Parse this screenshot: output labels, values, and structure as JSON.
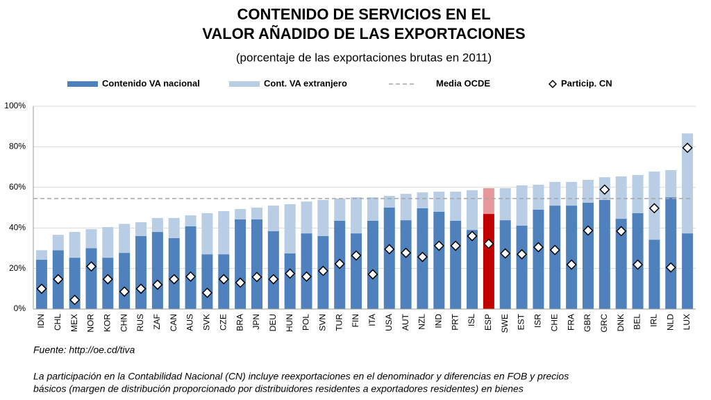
{
  "chart_data": {
    "type": "stacked_bar",
    "title_lines": [
      "CONTENIDO DE SERVICIOS EN EL",
      "VALOR AÑADIDO DE LAS EXPORTACIONES"
    ],
    "subtitle": "(porcentaje de las exportaciones brutas en 2011)",
    "categories": [
      "IDN",
      "CHL",
      "MEX",
      "NOR",
      "KOR",
      "CHN",
      "RUS",
      "ZAF",
      "CAN",
      "AUS",
      "SVK",
      "CZE",
      "BRA",
      "JPN",
      "DEU",
      "HUN",
      "POL",
      "SVN",
      "TUR",
      "FIN",
      "ITA",
      "USA",
      "AUT",
      "NZL",
      "IND",
      "PRT",
      "ISL",
      "ESP",
      "SWE",
      "EST",
      "ISR",
      "CHE",
      "FRA",
      "GBR",
      "GRC",
      "DNK",
      "BEL",
      "IRL",
      "NLD",
      "LUX"
    ],
    "series": [
      {
        "name": "Contenido VA nacional",
        "color": "#4f81bd",
        "values": [
          24.3,
          29,
          25.3,
          30,
          25.3,
          27.7,
          36,
          38,
          35,
          40.8,
          27,
          27,
          44.2,
          44.2,
          38.4,
          27.4,
          37.3,
          36,
          43.5,
          37.3,
          43.5,
          50,
          43.8,
          49.7,
          48,
          43.5,
          39,
          46.9,
          43.8,
          41.1,
          49,
          51,
          51,
          52.4,
          53.8,
          44.5,
          47.3,
          34.2,
          55.1,
          37.3
        ]
      },
      {
        "name": "Cont. VA extranjero",
        "color": "#b9cde5",
        "values": [
          4.7,
          7.6,
          12.7,
          9.4,
          15.1,
          14.3,
          6.8,
          6.9,
          9.9,
          5.4,
          20.3,
          21.3,
          5.1,
          5.8,
          12.6,
          24.3,
          15.7,
          17.8,
          11,
          17.8,
          11.6,
          5.8,
          13,
          7.8,
          9.9,
          14.4,
          19.6,
          12.7,
          15.8,
          19.9,
          12.3,
          11.7,
          11.7,
          11.3,
          11.2,
          20.9,
          18.8,
          33.6,
          13.4,
          49.3
        ]
      },
      {
        "name": "Particip. CN",
        "type": "marker",
        "color": "#ffffff",
        "values": [
          10,
          14.7,
          4.5,
          21,
          14.7,
          8.6,
          10,
          12,
          14.7,
          16,
          8,
          14.7,
          13,
          15.8,
          14.7,
          17.5,
          16,
          18.8,
          22.3,
          26.4,
          17.1,
          29.5,
          27.7,
          25.7,
          31.2,
          31.2,
          36,
          32.2,
          27.4,
          27,
          30.5,
          29.1,
          21.9,
          38.7,
          58.9,
          38.4,
          21.9,
          49.7,
          20.5,
          79.5
        ]
      }
    ],
    "reference_line": {
      "name": "Media OCDE",
      "value": 54.5,
      "color": "#a6a6a6"
    },
    "highlight": {
      "category": "ESP",
      "colors": [
        "#c00000",
        "#e6999b"
      ]
    },
    "ylim": [
      0,
      100
    ],
    "yticks": [
      {
        "value": 0,
        "label": "0%"
      },
      {
        "value": 20,
        "label": "20%"
      },
      {
        "value": 40,
        "label": "40%"
      },
      {
        "value": 60,
        "label": "60%"
      },
      {
        "value": 80,
        "label": "80%"
      },
      {
        "value": 100,
        "label": "100%"
      }
    ],
    "grid": true,
    "source": "Fuente: http://oe.cd/tiva",
    "note_lines": [
      "La participación en la Contabilidad Nacional (CN) incluye reexportaciones en el denominador y diferencias en FOB y precios",
      "básicos (margen de distribución proporcionado por distribuidores residentes a exportadores residentes) en bienes"
    ]
  }
}
